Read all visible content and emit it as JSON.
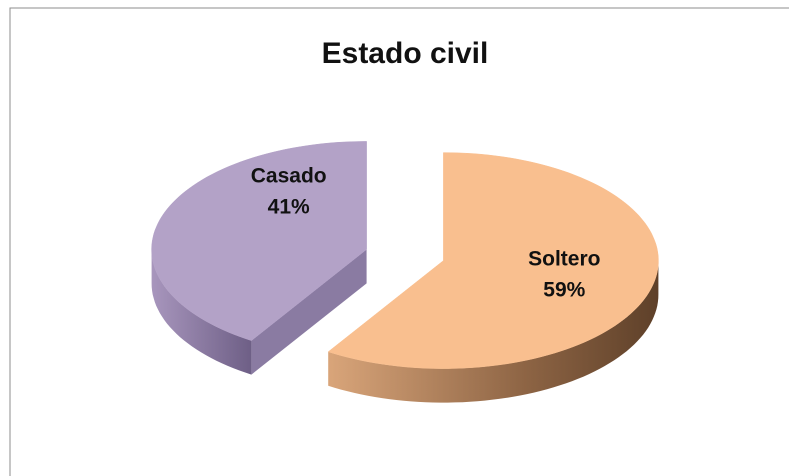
{
  "chart_data": {
    "type": "pie",
    "title": "Estado civil",
    "categories": [
      "Casado",
      "Soltero"
    ],
    "values": [
      41,
      59
    ],
    "value_labels": [
      "41%",
      "59%"
    ],
    "colors": [
      "#b3a2c7",
      "#f9bf8f"
    ]
  }
}
